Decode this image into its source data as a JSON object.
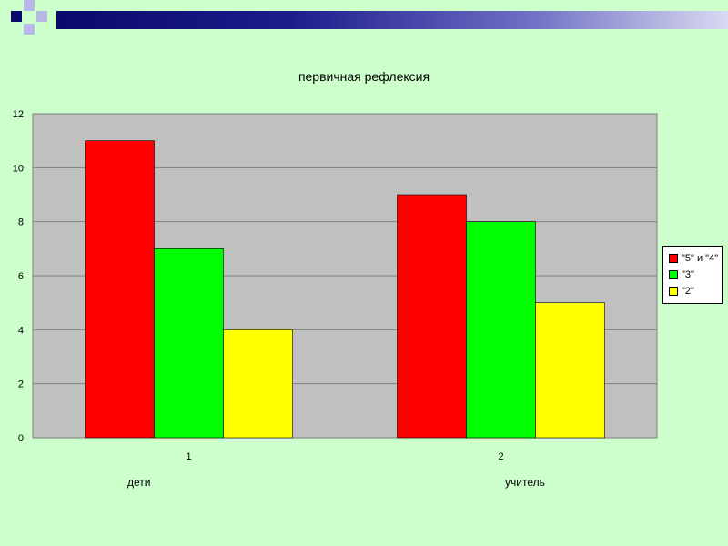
{
  "colors": {
    "background": "#ccffcc",
    "plot_area": "#c0c0c0",
    "series": [
      "#ff0000",
      "#00ff00",
      "#ffff00"
    ]
  },
  "chart_data": {
    "type": "bar",
    "title": "первичная рефлексия",
    "categories": [
      "1",
      "2"
    ],
    "category_sublabels": [
      "дети",
      "учитель"
    ],
    "series": [
      {
        "name": "\"5\" и \"4\"",
        "values": [
          11,
          9
        ]
      },
      {
        "name": "\"3\"",
        "values": [
          7,
          8
        ]
      },
      {
        "name": "\"2\"",
        "values": [
          4,
          5
        ]
      }
    ],
    "ylim": [
      0,
      12
    ],
    "yticks": [
      "0",
      "2",
      "4",
      "6",
      "8",
      "10",
      "12"
    ],
    "grid": true,
    "legend": "right"
  }
}
